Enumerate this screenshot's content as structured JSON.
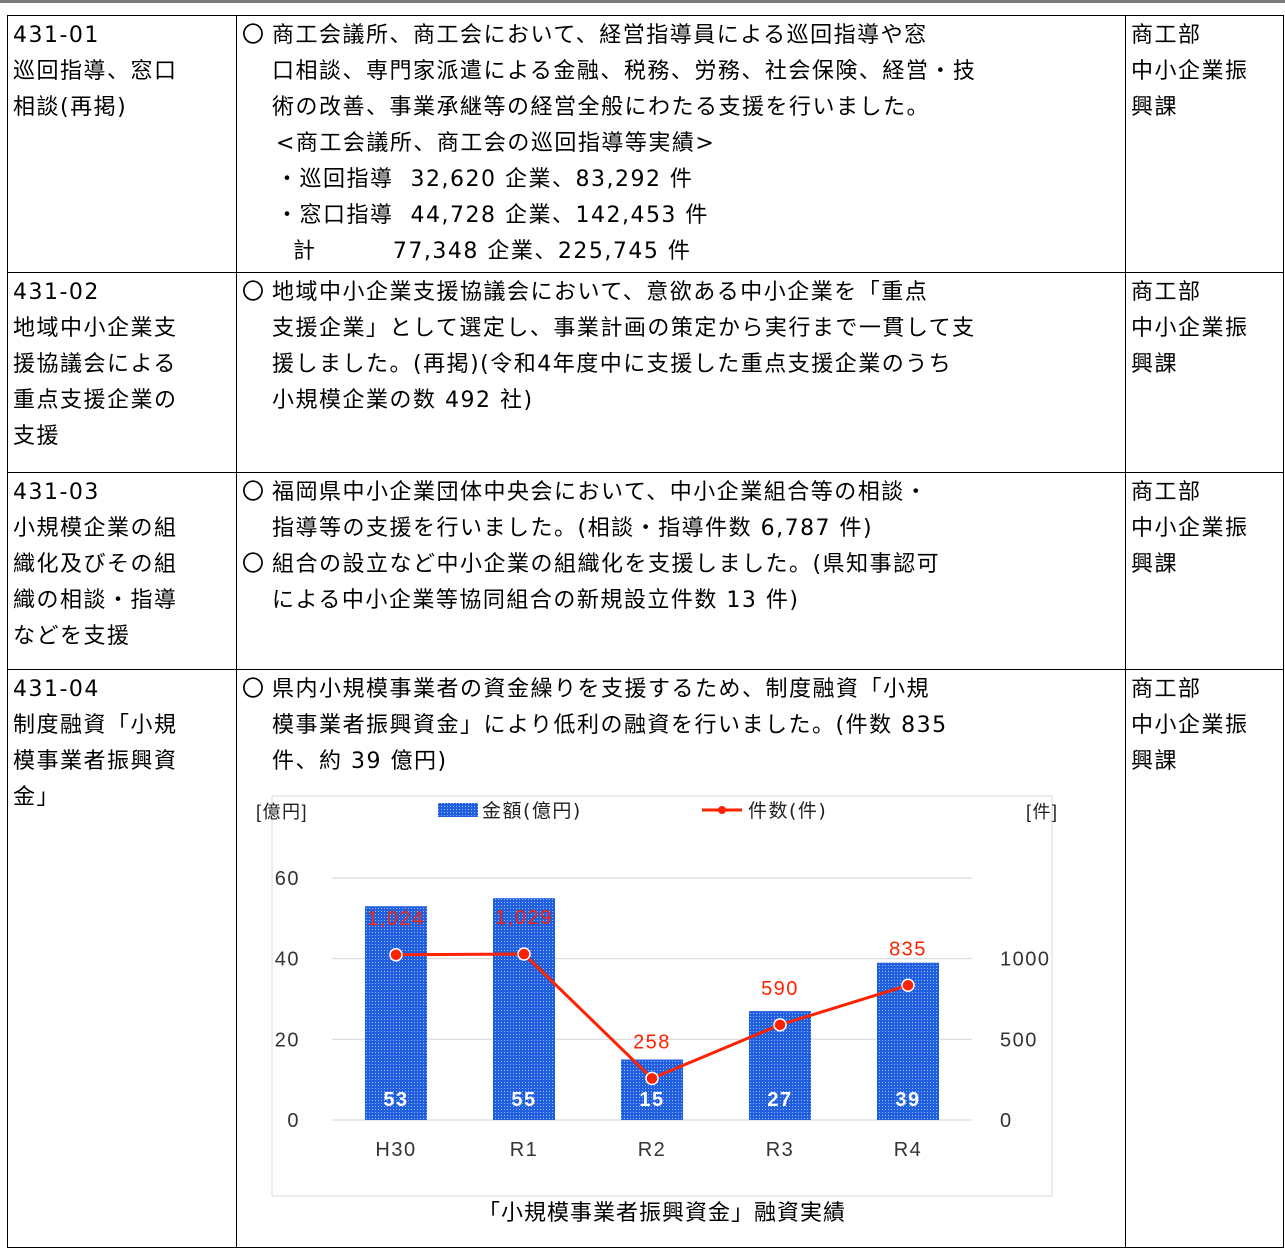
{
  "rows": [
    {
      "code": "431-01",
      "title_lines": [
        "巡回指導、窓口",
        "相談(再掲)"
      ],
      "paragraphs": [
        {
          "mark": "〇",
          "lines": [
            "商工会議所、商工会において、経営指導員による巡回指導や窓",
            "口相談、専門家派遣による金融、税務、労務、社会保険、経営・技",
            "術の改善、事業承継等の経営全般にわたる支援を行いました。"
          ]
        }
      ],
      "sublines": [
        "<商工会議所、商工会の巡回指導等実績>",
        "・巡回指導  32,620 企業、83,292 件",
        "・窓口指導  44,728 企業、142,453 件",
        "  計         77,348 企業、225,745 件"
      ],
      "dept_lines": [
        "商工部",
        "中小企業振",
        "興課"
      ]
    },
    {
      "code": "431-02",
      "title_lines": [
        "地域中小企業支",
        "援協議会による",
        "重点支援企業の",
        "支援"
      ],
      "paragraphs": [
        {
          "mark": "〇",
          "lines": [
            "地域中小企業支援協議会において、意欲ある中小企業を「重点",
            "支援企業」として選定し、事業計画の策定から実行まで一貫して支",
            "援しました。(再掲)(令和4年度中に支援した重点支援企業のうち",
            "小規模企業の数 492 社)"
          ]
        }
      ],
      "sublines": [],
      "dept_lines": [
        "商工部",
        "中小企業振",
        "興課"
      ]
    },
    {
      "code": "431-03",
      "title_lines": [
        "小規模企業の組",
        "織化及びその組",
        "織の相談・指導",
        "などを支援"
      ],
      "paragraphs": [
        {
          "mark": "〇",
          "lines": [
            "福岡県中小企業団体中央会において、中小企業組合等の相談・",
            "指導等の支援を行いました。(相談・指導件数 6,787 件)"
          ]
        },
        {
          "mark": "〇",
          "lines": [
            "組合の設立など中小企業の組織化を支援しました。(県知事認可",
            "による中小企業等協同組合の新規設立件数 13 件)"
          ]
        }
      ],
      "sublines": [],
      "dept_lines": [
        "商工部",
        "中小企業振",
        "興課"
      ]
    },
    {
      "code": "431-04",
      "title_lines": [
        "制度融資「小規",
        "模事業者振興資",
        "金」"
      ],
      "paragraphs": [
        {
          "mark": "〇",
          "lines": [
            "県内小規模事業者の資金繰りを支援するため、制度融資「小規",
            "模事業者振興資金」により低利の融資を行いました。(件数 835",
            "件、約 39 億円)"
          ]
        }
      ],
      "sublines": [],
      "dept_lines": [
        "商工部",
        "中小企業振",
        "興課"
      ]
    }
  ],
  "chart_data": {
    "type": "bar",
    "title": "「小規模事業者振興資金」融資実績",
    "categories": [
      "H30",
      "R1",
      "R2",
      "R3",
      "R4"
    ],
    "left_axis_unit": "[億円]",
    "right_axis_unit": "[件]",
    "ylim_left": [
      0,
      60
    ],
    "ylim_right": [
      0,
      1500
    ],
    "yticks_left": [
      "0",
      "20",
      "40",
      "60"
    ],
    "yticks_right": [
      "0",
      "500",
      "1000"
    ],
    "grid": true,
    "legend_position": "top",
    "series": [
      {
        "name": "金額(億円)",
        "type": "bar",
        "axis": "left",
        "values": [
          53,
          55,
          15,
          27,
          39
        ],
        "labels": [
          "53",
          "55",
          "15",
          "27",
          "39"
        ],
        "color": "#1f5fe0"
      },
      {
        "name": "件数(件)",
        "type": "line",
        "axis": "right",
        "values": [
          1024,
          1029,
          258,
          590,
          835
        ],
        "labels": [
          "1,024",
          "1,029",
          "258",
          "590",
          "835"
        ],
        "color": "#ff2200"
      }
    ]
  }
}
